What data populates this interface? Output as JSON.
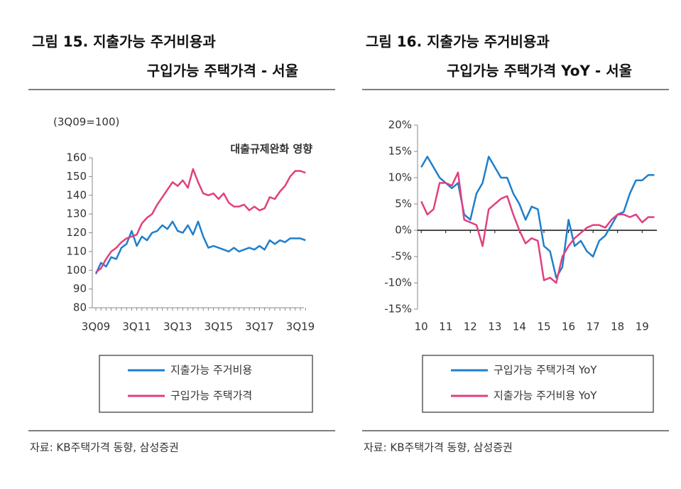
{
  "chart_data": [
    {
      "type": "line",
      "title": "그림 15. 지출가능 주거비용과",
      "subtitle": "구입가능 주택가격 - 서울",
      "y_label": "(3Q09=100)",
      "annotation": "대출규제완화 영향",
      "source": "자료: KB주택가격 동향, 삼성증권",
      "categories": [
        "3Q09",
        null,
        null,
        null,
        null,
        null,
        null,
        null,
        "3Q11",
        null,
        null,
        null,
        null,
        null,
        null,
        null,
        "3Q13",
        null,
        null,
        null,
        null,
        null,
        null,
        null,
        "3Q15",
        null,
        null,
        null,
        null,
        null,
        null,
        null,
        "3Q17",
        null,
        null,
        null,
        null,
        null,
        null,
        null,
        "3Q19",
        null
      ],
      "series": [
        {
          "name": "지출가능 주거비용",
          "color": "#1f7fcc",
          "values": [
            98,
            104,
            102,
            107,
            106,
            112,
            114,
            121,
            113,
            118,
            116,
            120,
            121,
            124,
            122,
            126,
            121,
            120,
            124,
            119,
            126,
            118,
            112,
            113,
            112,
            111,
            110,
            112,
            110,
            111,
            112,
            111,
            113,
            111,
            116,
            114,
            116,
            115,
            117,
            117,
            117,
            116
          ]
        },
        {
          "name": "구입가능 주택가격",
          "color": "#e0407f",
          "values": [
            99,
            101,
            106,
            110,
            112,
            115,
            117,
            118,
            119,
            125,
            128,
            130,
            135,
            139,
            143,
            147,
            145,
            148,
            144,
            154,
            147,
            141,
            140,
            141,
            138,
            141,
            136,
            134,
            134,
            135,
            132,
            134,
            132,
            133,
            139,
            138,
            142,
            145,
            150,
            153,
            153,
            152
          ]
        }
      ],
      "ylim": [
        80,
        160
      ],
      "yticks": [
        80,
        90,
        100,
        110,
        120,
        130,
        140,
        150,
        160
      ],
      "legend": "bottom"
    },
    {
      "type": "line",
      "title": "그림 16. 지출가능 주거비용과",
      "subtitle": "구입가능 주택가격 YoY - 서울",
      "source": "자료: KB주택가격 동향, 삼성증권",
      "x": [
        10,
        10.25,
        10.5,
        10.75,
        11,
        11.25,
        11.5,
        11.75,
        12,
        12.25,
        12.5,
        12.75,
        13,
        13.25,
        13.5,
        13.75,
        14,
        14.25,
        14.5,
        14.75,
        15,
        15.25,
        15.5,
        15.75,
        16,
        16.25,
        16.5,
        16.75,
        17,
        17.25,
        17.5,
        17.75,
        18,
        18.25,
        18.5,
        18.75,
        19,
        19.25,
        19.5
      ],
      "series": [
        {
          "name": "구입가능 주택가격 YoY",
          "color": "#1f7fcc",
          "values": [
            12,
            14,
            12,
            10,
            9,
            8,
            9,
            3,
            2,
            7,
            9,
            14,
            12,
            10,
            10,
            7,
            5,
            2,
            4.5,
            4,
            -3,
            -4,
            -9,
            -7,
            2,
            -3,
            -2,
            -4,
            -5,
            -2,
            -1,
            1,
            3,
            3.5,
            7,
            9.5,
            9.5,
            10.5,
            10.5
          ]
        },
        {
          "name": "지출가능 주거비용 YoY",
          "color": "#e0407f",
          "values": [
            5.5,
            3,
            4,
            9,
            9,
            8.5,
            11,
            2,
            1.5,
            1,
            -3,
            4,
            5,
            6,
            6.5,
            3,
            0,
            -2.5,
            -1.5,
            -2,
            -9.5,
            -9,
            -10,
            -5,
            -3,
            -1.5,
            -0.5,
            0.5,
            1,
            1,
            0.5,
            2,
            3,
            3,
            2.5,
            3,
            1.5,
            2.5,
            2.5
          ]
        }
      ],
      "xlim": [
        9.85,
        19.6
      ],
      "xticks": [
        10,
        11,
        12,
        13,
        14,
        15,
        16,
        17,
        18,
        19
      ],
      "ylim": [
        -15,
        20
      ],
      "yticks": [
        {
          "value": -15,
          "label": "-15%"
        },
        {
          "value": -10,
          "label": "-10%"
        },
        {
          "value": -5,
          "label": "-5%"
        },
        {
          "value": 0,
          "label": "0%"
        },
        {
          "value": 5,
          "label": "5%"
        },
        {
          "value": 10,
          "label": "10%"
        },
        {
          "value": 15,
          "label": "15%"
        },
        {
          "value": 20,
          "label": "20%"
        }
      ],
      "legend": "bottom"
    }
  ]
}
